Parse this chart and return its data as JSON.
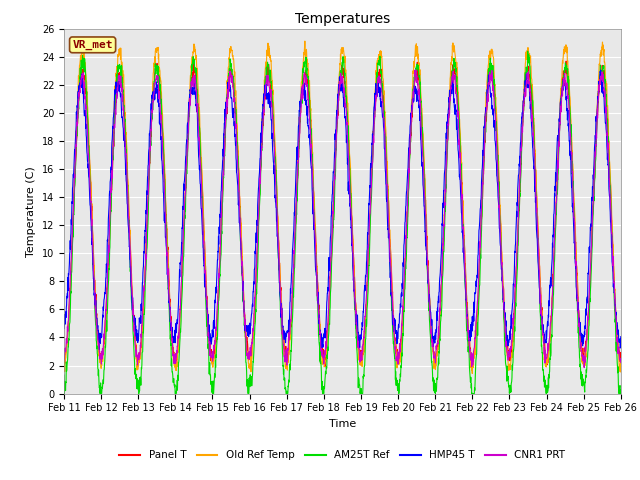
{
  "title": "Temperatures",
  "xlabel": "Time",
  "ylabel": "Temperature (C)",
  "ylim": [
    0,
    26
  ],
  "xtick_labels": [
    "Feb 11",
    "Feb 12",
    "Feb 13",
    "Feb 14",
    "Feb 15",
    "Feb 16",
    "Feb 17",
    "Feb 18",
    "Feb 19",
    "Feb 20",
    "Feb 21",
    "Feb 22",
    "Feb 23",
    "Feb 24",
    "Feb 25",
    "Feb 26"
  ],
  "annotation_text": "VR_met",
  "annotation_bg": "#ffff99",
  "annotation_border": "#8B4513",
  "annotation_text_color": "#8B0000",
  "series": [
    {
      "name": "Panel T",
      "color": "#ff0000",
      "lw": 0.8
    },
    {
      "name": "Old Ref Temp",
      "color": "#ffa500",
      "lw": 0.8
    },
    {
      "name": "AM25T Ref",
      "color": "#00dd00",
      "lw": 0.8
    },
    {
      "name": "HMP45 T",
      "color": "#0000ff",
      "lw": 0.8
    },
    {
      "name": "CNR1 PRT",
      "color": "#cc00cc",
      "lw": 0.8
    }
  ],
  "plot_bg": "#e8e8e8",
  "grid_color": "#ffffff",
  "title_fontsize": 10,
  "label_fontsize": 8,
  "tick_fontsize": 7,
  "yticks": [
    0,
    2,
    4,
    6,
    8,
    10,
    12,
    14,
    16,
    18,
    20,
    22,
    24,
    26
  ]
}
